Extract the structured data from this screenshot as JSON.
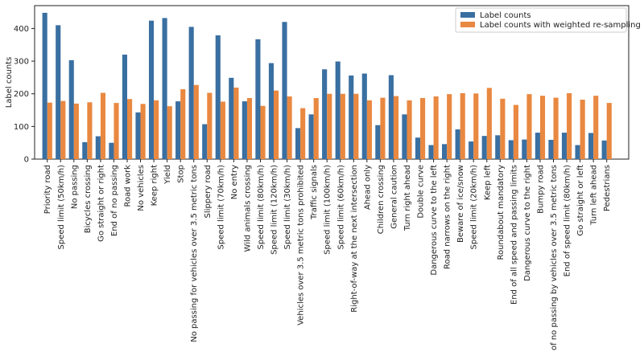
{
  "chart_data": {
    "type": "bar",
    "title": "",
    "xlabel": "",
    "ylabel": "Label counts",
    "ylim": [
      0,
      470
    ],
    "yticks": [
      0,
      100,
      200,
      300,
      400
    ],
    "grid": false,
    "legend_position": "top-right",
    "categories": [
      "Priority road",
      "Speed limit (50km/h)",
      "No passing",
      "Bicycles crossing",
      "Go straight or right",
      "End of no passing",
      "Road work",
      "No vehicles",
      "Keep right",
      "Yield",
      "Stop",
      "No passing for vehicles over 3.5 metric tons",
      "Slippery road",
      "Speed limit (70km/h)",
      "No entry",
      "Wild animals crossing",
      "Speed limit (80km/h)",
      "Speed limit (120km/h)",
      "Speed limit (30km/h)",
      "Vehicles over 3.5 metric tons prohibited",
      "Traffic signals",
      "Speed limit (100km/h)",
      "Speed limit (60km/h)",
      "Right-of-way at the next intersection",
      "Ahead only",
      "Children crossing",
      "General caution",
      "Turn right ahead",
      "Double curve",
      "Dangerous curve to the left",
      "Road narrows on the right",
      "Beware of ice/snow",
      "Speed limit (20km/h)",
      "Keep left",
      "Roundabout mandatory",
      "End of all speed and passing limits",
      "Dangerous curve to the right",
      "Bumpy road",
      "End of no passing by vehicles over 3.5 metric tons",
      "End of speed limit (80km/h)",
      "Go straight or left",
      "Turn left ahead",
      "Pedestrians"
    ],
    "series": [
      {
        "name": "Label counts",
        "color": "#3a6fa1",
        "values": [
          448,
          410,
          303,
          52,
          70,
          50,
          320,
          143,
          424,
          432,
          177,
          405,
          107,
          379,
          249,
          177,
          367,
          294,
          420,
          95,
          137,
          275,
          299,
          256,
          262,
          104,
          257,
          137,
          66,
          43,
          46,
          91,
          54,
          71,
          73,
          58,
          60,
          81,
          59,
          81,
          43,
          80,
          57
        ]
      },
      {
        "name": "Label counts with weighted re-sampling",
        "color": "#e98840",
        "values": [
          173,
          178,
          170,
          174,
          203,
          172,
          184,
          169,
          180,
          162,
          214,
          227,
          203,
          176,
          219,
          187,
          163,
          210,
          192,
          156,
          187,
          200,
          200,
          200,
          180,
          188,
          193,
          180,
          187,
          192,
          199,
          202,
          201,
          218,
          185,
          166,
          199,
          194,
          188,
          202,
          182,
          194,
          172
        ]
      }
    ]
  }
}
